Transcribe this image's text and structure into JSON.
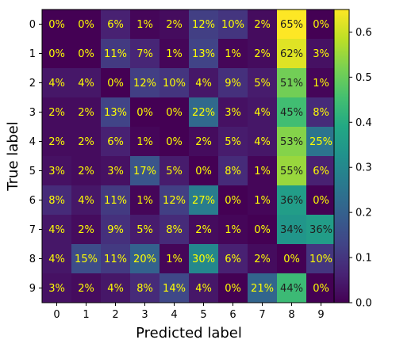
{
  "chart_data": {
    "type": "heatmap",
    "title": "",
    "xlabel": "Predicted label",
    "ylabel": "True label",
    "x_categories": [
      "0",
      "1",
      "2",
      "3",
      "4",
      "5",
      "6",
      "7",
      "8",
      "9"
    ],
    "y_categories": [
      "0",
      "1",
      "2",
      "3",
      "4",
      "5",
      "6",
      "7",
      "8",
      "9"
    ],
    "values": [
      [
        0.0,
        0.0,
        0.06,
        0.01,
        0.02,
        0.12,
        0.1,
        0.02,
        0.65,
        0.0
      ],
      [
        0.0,
        0.0,
        0.11,
        0.07,
        0.01,
        0.13,
        0.01,
        0.02,
        0.62,
        0.03
      ],
      [
        0.04,
        0.04,
        0.0,
        0.12,
        0.1,
        0.04,
        0.09,
        0.05,
        0.51,
        0.01
      ],
      [
        0.02,
        0.02,
        0.13,
        0.0,
        0.0,
        0.22,
        0.03,
        0.04,
        0.45,
        0.08
      ],
      [
        0.02,
        0.02,
        0.06,
        0.01,
        0.0,
        0.02,
        0.05,
        0.04,
        0.53,
        0.25
      ],
      [
        0.03,
        0.02,
        0.03,
        0.17,
        0.05,
        0.0,
        0.08,
        0.01,
        0.55,
        0.06
      ],
      [
        0.08,
        0.04,
        0.11,
        0.01,
        0.12,
        0.27,
        0.0,
        0.01,
        0.36,
        0.0
      ],
      [
        0.04,
        0.02,
        0.09,
        0.05,
        0.08,
        0.02,
        0.01,
        0.0,
        0.34,
        0.36
      ],
      [
        0.04,
        0.15,
        0.11,
        0.2,
        0.01,
        0.3,
        0.06,
        0.02,
        0.0,
        0.1
      ],
      [
        0.03,
        0.02,
        0.04,
        0.08,
        0.14,
        0.04,
        0.0,
        0.21,
        0.44,
        0.0
      ]
    ],
    "cell_labels": [
      [
        "0%",
        "0%",
        "6%",
        "1%",
        "2%",
        "12%",
        "10%",
        "2%",
        "65%",
        "0%"
      ],
      [
        "0%",
        "0%",
        "11%",
        "7%",
        "1%",
        "13%",
        "1%",
        "2%",
        "62%",
        "3%"
      ],
      [
        "4%",
        "4%",
        "0%",
        "12%",
        "10%",
        "4%",
        "9%",
        "5%",
        "51%",
        "1%"
      ],
      [
        "2%",
        "2%",
        "13%",
        "0%",
        "0%",
        "22%",
        "3%",
        "4%",
        "45%",
        "8%"
      ],
      [
        "2%",
        "2%",
        "6%",
        "1%",
        "0%",
        "2%",
        "5%",
        "4%",
        "53%",
        "25%"
      ],
      [
        "3%",
        "2%",
        "3%",
        "17%",
        "5%",
        "0%",
        "8%",
        "1%",
        "55%",
        "6%"
      ],
      [
        "8%",
        "4%",
        "11%",
        "1%",
        "12%",
        "27%",
        "0%",
        "1%",
        "36%",
        "0%"
      ],
      [
        "4%",
        "2%",
        "9%",
        "5%",
        "8%",
        "2%",
        "1%",
        "0%",
        "34%",
        "36%"
      ],
      [
        "4%",
        "15%",
        "11%",
        "20%",
        "1%",
        "30%",
        "6%",
        "2%",
        "0%",
        "10%"
      ],
      [
        "3%",
        "2%",
        "4%",
        "8%",
        "14%",
        "4%",
        "0%",
        "21%",
        "44%",
        "0%"
      ]
    ],
    "colormap": "viridis",
    "vmin": 0.0,
    "vmax": 0.65,
    "colorbar_ticks": [
      0.0,
      0.1,
      0.2,
      0.3,
      0.4,
      0.5,
      0.6
    ],
    "colorbar_tick_labels": [
      "0.0",
      "0.1",
      "0.2",
      "0.3",
      "0.4",
      "0.5",
      "0.6"
    ],
    "label_colors": {
      "on_dark": "#ffff00",
      "on_light": "#1f1f1f"
    },
    "grid": false,
    "legend": "colorbar-right"
  }
}
